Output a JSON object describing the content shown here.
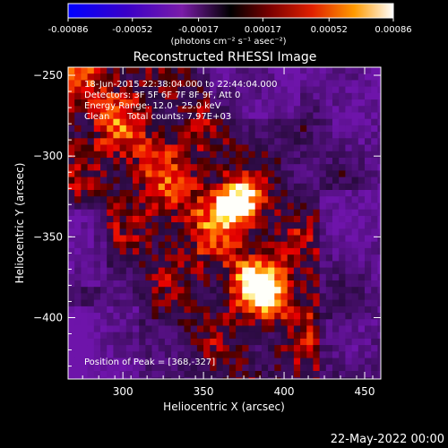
{
  "chart_data": {
    "type": "heatmap",
    "title": "Reconstructed RHESSI Image",
    "xlabel": "Heliocentric X (arcsec)",
    "ylabel": "Heliocentric Y (arcsec)",
    "xlim": [
      266,
      460
    ],
    "ylim": [
      -438,
      -245
    ],
    "x_ticks": [
      300,
      350,
      400,
      450
    ],
    "y_ticks": [
      -250,
      -300,
      -350,
      -400
    ],
    "colorbar": {
      "colormap": "hot-with-violet-negatives",
      "range": [
        -0.00086,
        0.00086
      ],
      "tick_labels": [
        "-0.00086",
        "-0.00052",
        "-0.00017",
        "0.00017",
        "0.00052",
        "0.00086"
      ],
      "unit_label": "(photons cm⁻² s⁻¹ asec⁻²)"
    },
    "sources": [
      {
        "x": 368,
        "y": -327,
        "peak_relative": 1.0
      },
      {
        "x": 384,
        "y": -380,
        "peak_relative": 0.8
      }
    ],
    "grid": false
  },
  "annotations": {
    "time_range": "18-Jun-2015 22:38:04.000 to 22:44:04.000",
    "detectors": "Detectors: 3F 5F 6F 7F 8F 9F, Att 0",
    "energy": "Energy Range: 12.0 - 25.0 keV",
    "clean": "Clean",
    "counts": "Total counts: 7.97E+03",
    "peak": "Position of Peak = [368,-327]"
  },
  "footer_date": "22-May-2022 00:00"
}
